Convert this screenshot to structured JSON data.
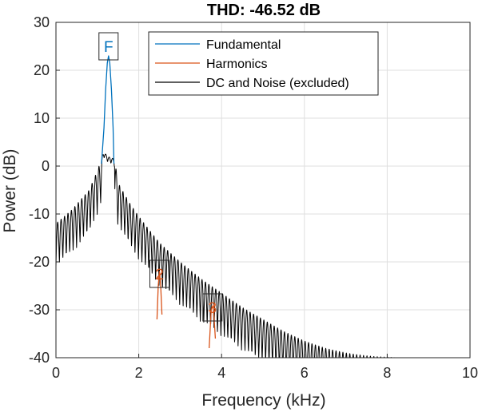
{
  "chart_data": {
    "type": "line",
    "title": "THD: -46.52 dB",
    "xlabel": "Frequency (kHz)",
    "ylabel": "Power (dB)",
    "xlim": [
      0,
      10
    ],
    "ylim": [
      -40,
      30
    ],
    "xticks": [
      0,
      2,
      4,
      6,
      8,
      10
    ],
    "yticks": [
      -40,
      -30,
      -20,
      -10,
      0,
      10,
      20,
      30
    ],
    "grid": true,
    "legend_position": "top-right",
    "series": [
      {
        "name": "Fundamental",
        "color": "#0072BD",
        "x": [
          1.1,
          1.16,
          1.2,
          1.24,
          1.27,
          1.3,
          1.34,
          1.38,
          1.4
        ],
        "values": [
          0.5,
          8,
          16,
          21.5,
          23,
          21.5,
          16,
          8,
          0.5
        ]
      },
      {
        "name": "Harmonics",
        "color": "#D95319",
        "x": [
          2.44,
          2.47,
          2.5,
          2.53,
          2.56,
          3.7,
          3.75,
          3.8,
          3.85
        ],
        "values": [
          -32,
          -25,
          -22,
          -25,
          -31,
          -38,
          -30,
          -29,
          -36
        ]
      },
      {
        "name": "DC and Noise (excluded)",
        "color": "#000000",
        "x": [
          0,
          0.4,
          0.8,
          1.0,
          1.1,
          1.15,
          1.25,
          1.4,
          1.45,
          1.5,
          1.8,
          2.0,
          2.5,
          3.0,
          3.5,
          4.0,
          4.5,
          5.0,
          5.5,
          6.0,
          6.5,
          7.0,
          7.5,
          8.0,
          8.4
        ],
        "values": [
          -12,
          -9,
          -5,
          -1,
          1.5,
          3,
          2,
          1.5,
          -0.5,
          -3.5,
          -8,
          -10.5,
          -16,
          -20,
          -23.5,
          -26.5,
          -29.5,
          -32,
          -34.5,
          -36.5,
          -38,
          -39,
          -39.6,
          -39.9,
          -40
        ]
      }
    ],
    "annotations": [
      {
        "text": "F",
        "x": 1.27,
        "y": 25,
        "color": "#0072BD"
      },
      {
        "text": "2",
        "x": 2.5,
        "y": -22.5,
        "color": "#D95319"
      },
      {
        "text": "3",
        "x": 3.78,
        "y": -29.5,
        "color": "#D95319"
      }
    ]
  }
}
